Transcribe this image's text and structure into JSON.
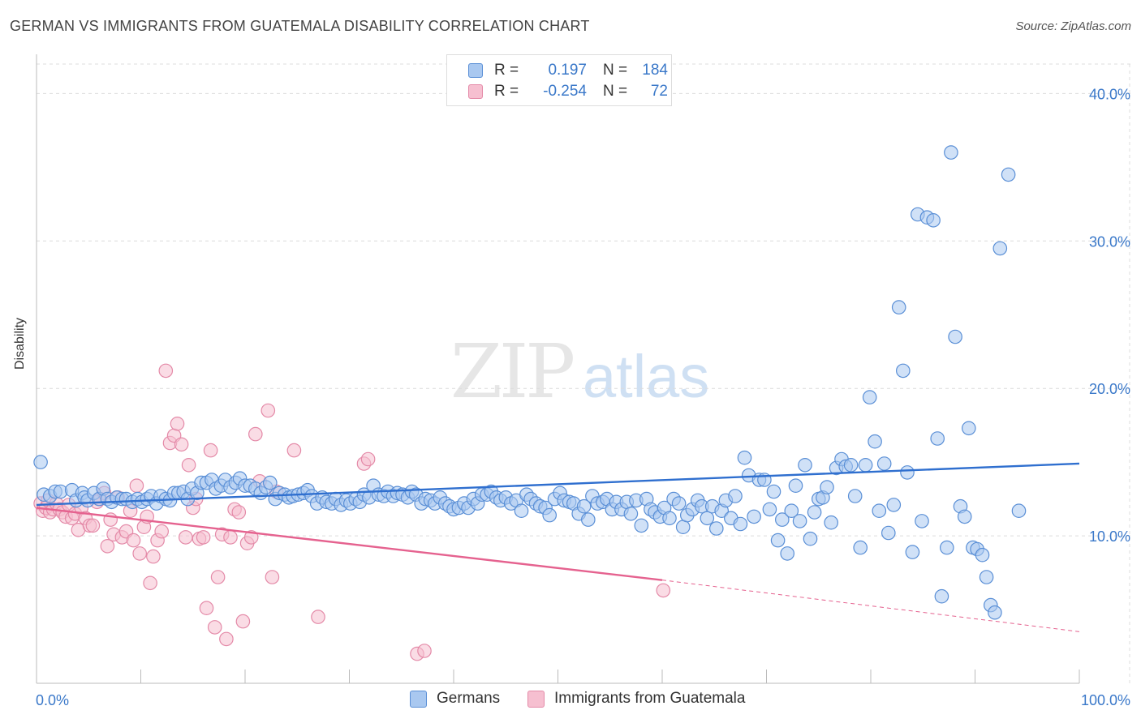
{
  "title": "GERMAN VS IMMIGRANTS FROM GUATEMALA DISABILITY CORRELATION CHART",
  "source": "Source: ZipAtlas.com",
  "watermark": {
    "zip": "ZIP",
    "atlas": "atlas"
  },
  "legend": {
    "rows": [
      {
        "r_label": "R =",
        "r_value": "0.197",
        "n_label": "N =",
        "n_value": "184"
      },
      {
        "r_label": "R =",
        "r_value": "-0.254",
        "n_label": "N =",
        "n_value": "72"
      }
    ]
  },
  "colors": {
    "blue_fill": "#a9c8f0",
    "blue_stroke": "#5a8fd6",
    "blue_line": "#2f6fcf",
    "pink_fill": "#f6bfd0",
    "pink_stroke": "#e48aa8",
    "pink_line": "#e5628f",
    "grid": "#dcdcdc",
    "tick_text": "#3a78c9"
  },
  "chart_data": {
    "type": "scatter",
    "title": "GERMAN VS IMMIGRANTS FROM GUATEMALA DISABILITY CORRELATION CHART",
    "xlabel": "",
    "ylabel": "Disability",
    "xlim": [
      0,
      100
    ],
    "ylim": [
      0,
      42
    ],
    "x_tick_labels": [
      "0.0%",
      "100.0%"
    ],
    "y_ticks": [
      10,
      20,
      30,
      40
    ],
    "y_tick_labels": [
      "10.0%",
      "20.0%",
      "30.0%",
      "40.0%"
    ],
    "grid": true,
    "legend_position": "top-center",
    "series": [
      {
        "name": "Germans",
        "r": 0.197,
        "n": 184,
        "trend": {
          "x0": 0,
          "y0": 12.1,
          "x1": 100,
          "y1": 14.9
        },
        "points": [
          [
            0.4,
            15
          ],
          [
            0.7,
            12.8
          ],
          [
            1.3,
            12.7
          ],
          [
            1.8,
            13
          ],
          [
            2.3,
            13
          ],
          [
            3.4,
            13.1
          ],
          [
            3.8,
            12.4
          ],
          [
            4.4,
            12.9
          ],
          [
            4.6,
            12.6
          ],
          [
            4.9,
            12.4
          ],
          [
            5.5,
            12.9
          ],
          [
            6,
            12.5
          ],
          [
            6.4,
            13.2
          ],
          [
            6.8,
            12.5
          ],
          [
            7.2,
            12.3
          ],
          [
            7.7,
            12.6
          ],
          [
            8.2,
            12.5
          ],
          [
            8.6,
            12.5
          ],
          [
            9.2,
            12.3
          ],
          [
            9.7,
            12.5
          ],
          [
            10.1,
            12.3
          ],
          [
            10.6,
            12.5
          ],
          [
            11,
            12.7
          ],
          [
            11.5,
            12.2
          ],
          [
            11.9,
            12.7
          ],
          [
            12.4,
            12.5
          ],
          [
            12.8,
            12.4
          ],
          [
            13.2,
            12.9
          ],
          [
            13.6,
            12.9
          ],
          [
            14.1,
            13
          ],
          [
            14.5,
            12.5
          ],
          [
            14.9,
            13.2
          ],
          [
            15.4,
            12.9
          ],
          [
            15.8,
            13.6
          ],
          [
            16.3,
            13.6
          ],
          [
            16.8,
            13.8
          ],
          [
            17.2,
            13.2
          ],
          [
            17.7,
            13.4
          ],
          [
            18.1,
            13.8
          ],
          [
            18.6,
            13.3
          ],
          [
            19.1,
            13.6
          ],
          [
            19.5,
            13.9
          ],
          [
            20,
            13.4
          ],
          [
            20.5,
            13.4
          ],
          [
            21,
            13.2
          ],
          [
            21.5,
            12.9
          ],
          [
            22,
            13.3
          ],
          [
            22.4,
            13.6
          ],
          [
            22.9,
            12.5
          ],
          [
            23.3,
            12.9
          ],
          [
            23.8,
            12.8
          ],
          [
            24.2,
            12.6
          ],
          [
            24.6,
            12.7
          ],
          [
            25.1,
            12.8
          ],
          [
            25.6,
            12.9
          ],
          [
            26,
            13.1
          ],
          [
            26.4,
            12.7
          ],
          [
            26.9,
            12.2
          ],
          [
            27.4,
            12.6
          ],
          [
            27.8,
            12.3
          ],
          [
            28.3,
            12.2
          ],
          [
            28.7,
            12.5
          ],
          [
            29.2,
            12.1
          ],
          [
            29.7,
            12.4
          ],
          [
            30.1,
            12.2
          ],
          [
            30.6,
            12.5
          ],
          [
            31,
            12.3
          ],
          [
            31.4,
            12.8
          ],
          [
            31.9,
            12.6
          ],
          [
            32.3,
            13.4
          ],
          [
            32.8,
            12.8
          ],
          [
            33.3,
            12.7
          ],
          [
            33.7,
            13
          ],
          [
            34.2,
            12.7
          ],
          [
            34.6,
            12.9
          ],
          [
            35.1,
            12.8
          ],
          [
            35.6,
            12.6
          ],
          [
            36,
            13
          ],
          [
            36.4,
            12.8
          ],
          [
            36.9,
            12.2
          ],
          [
            37.3,
            12.5
          ],
          [
            37.8,
            12.4
          ],
          [
            38.2,
            12.2
          ],
          [
            38.7,
            12.6
          ],
          [
            39.2,
            12.2
          ],
          [
            39.6,
            12
          ],
          [
            40,
            11.8
          ],
          [
            40.5,
            11.9
          ],
          [
            41,
            12.2
          ],
          [
            41.4,
            11.9
          ],
          [
            41.9,
            12.5
          ],
          [
            42.3,
            12.2
          ],
          [
            42.7,
            12.8
          ],
          [
            43.2,
            12.8
          ],
          [
            43.6,
            13
          ],
          [
            44.1,
            12.6
          ],
          [
            44.5,
            12.4
          ],
          [
            45,
            12.6
          ],
          [
            45.5,
            12.2
          ],
          [
            46,
            12.4
          ],
          [
            46.5,
            11.7
          ],
          [
            47,
            12.8
          ],
          [
            47.4,
            12.5
          ],
          [
            47.9,
            12.2
          ],
          [
            48.3,
            12
          ],
          [
            48.8,
            11.9
          ],
          [
            49.2,
            11.4
          ],
          [
            49.7,
            12.5
          ],
          [
            50.2,
            12.9
          ],
          [
            50.6,
            12.4
          ],
          [
            51.1,
            12.3
          ],
          [
            51.5,
            12.2
          ],
          [
            52,
            11.5
          ],
          [
            52.5,
            12
          ],
          [
            52.9,
            11.1
          ],
          [
            53.3,
            12.7
          ],
          [
            53.8,
            12.2
          ],
          [
            54.3,
            12.3
          ],
          [
            54.7,
            12.5
          ],
          [
            55.2,
            11.8
          ],
          [
            55.6,
            12.3
          ],
          [
            56.1,
            11.8
          ],
          [
            56.6,
            12.3
          ],
          [
            57,
            11.5
          ],
          [
            57.5,
            12.4
          ],
          [
            58,
            10.7
          ],
          [
            58.5,
            12.5
          ],
          [
            58.9,
            11.8
          ],
          [
            59.3,
            11.6
          ],
          [
            59.8,
            11.3
          ],
          [
            60.2,
            11.9
          ],
          [
            60.7,
            11.2
          ],
          [
            61.1,
            12.5
          ],
          [
            61.6,
            12.2
          ],
          [
            62,
            10.6
          ],
          [
            62.4,
            11.4
          ],
          [
            62.9,
            11.8
          ],
          [
            63.4,
            12.4
          ],
          [
            63.8,
            12
          ],
          [
            64.3,
            11.2
          ],
          [
            64.8,
            12
          ],
          [
            65.2,
            10.5
          ],
          [
            65.7,
            11.7
          ],
          [
            66.1,
            12.4
          ],
          [
            66.6,
            11.2
          ],
          [
            67,
            12.7
          ],
          [
            67.5,
            10.8
          ],
          [
            67.9,
            15.3
          ],
          [
            68.3,
            14.1
          ],
          [
            68.8,
            11.3
          ],
          [
            69.3,
            13.8
          ],
          [
            69.8,
            13.8
          ],
          [
            70.3,
            11.8
          ],
          [
            70.7,
            13
          ],
          [
            71.1,
            9.7
          ],
          [
            71.5,
            11.1
          ],
          [
            72,
            8.8
          ],
          [
            72.4,
            11.7
          ],
          [
            72.8,
            13.4
          ],
          [
            73.2,
            11
          ],
          [
            73.7,
            14.8
          ],
          [
            74.2,
            9.8
          ],
          [
            74.6,
            11.6
          ],
          [
            75,
            12.5
          ],
          [
            75.4,
            12.6
          ],
          [
            75.8,
            13.3
          ],
          [
            76.2,
            10.9
          ],
          [
            76.7,
            14.6
          ],
          [
            77.2,
            15.2
          ],
          [
            77.6,
            14.7
          ],
          [
            78.1,
            14.8
          ],
          [
            78.5,
            12.7
          ],
          [
            79,
            9.2
          ],
          [
            79.5,
            14.8
          ],
          [
            79.9,
            19.4
          ],
          [
            80.4,
            16.4
          ],
          [
            80.8,
            11.7
          ],
          [
            81.3,
            14.9
          ],
          [
            81.7,
            10.2
          ],
          [
            82.2,
            12.1
          ],
          [
            82.7,
            25.5
          ],
          [
            83.1,
            21.2
          ],
          [
            83.5,
            14.3
          ],
          [
            84,
            8.9
          ],
          [
            84.5,
            31.8
          ],
          [
            84.9,
            11
          ],
          [
            85.4,
            31.6
          ],
          [
            86,
            31.4
          ],
          [
            86.4,
            16.6
          ],
          [
            86.8,
            5.9
          ],
          [
            87.3,
            9.2
          ],
          [
            87.7,
            36
          ],
          [
            88.1,
            23.5
          ],
          [
            88.6,
            12
          ],
          [
            89,
            11.3
          ],
          [
            89.4,
            17.3
          ],
          [
            89.8,
            9.2
          ],
          [
            90.2,
            9.1
          ],
          [
            90.7,
            8.7
          ],
          [
            91.1,
            7.2
          ],
          [
            91.5,
            5.3
          ],
          [
            91.9,
            4.8
          ],
          [
            92.4,
            29.5
          ],
          [
            93.2,
            34.5
          ],
          [
            94.2,
            11.7
          ]
        ]
      },
      {
        "name": "Immigrants from Guatemala",
        "r": -0.254,
        "n": 72,
        "trend": {
          "x0": 0,
          "y0": 11.9,
          "x1": 60,
          "y1": 7.0,
          "dash_x1": 100,
          "dash_y1": 3.5
        },
        "points": [
          [
            0.4,
            12.2
          ],
          [
            0.6,
            11.7
          ],
          [
            0.9,
            11.9
          ],
          [
            1.1,
            12.4
          ],
          [
            1.3,
            11.6
          ],
          [
            1.6,
            11.8
          ],
          [
            1.9,
            12.2
          ],
          [
            2.2,
            11.8
          ],
          [
            2.5,
            11.6
          ],
          [
            2.8,
            11.3
          ],
          [
            3.1,
            12.1
          ],
          [
            3.4,
            11.2
          ],
          [
            3.7,
            11.5
          ],
          [
            4,
            10.4
          ],
          [
            4.3,
            11.9
          ],
          [
            4.7,
            11.2
          ],
          [
            5.1,
            10.7
          ],
          [
            5.4,
            10.7
          ],
          [
            5.8,
            12.3
          ],
          [
            6.1,
            12.5
          ],
          [
            6.5,
            12.9
          ],
          [
            6.8,
            9.3
          ],
          [
            7.1,
            11.1
          ],
          [
            7.4,
            10.1
          ],
          [
            7.8,
            12.6
          ],
          [
            8.2,
            9.9
          ],
          [
            8.6,
            10.3
          ],
          [
            9,
            11.7
          ],
          [
            9.3,
            9.7
          ],
          [
            9.6,
            13.4
          ],
          [
            9.9,
            8.8
          ],
          [
            10.3,
            10.6
          ],
          [
            10.6,
            11.3
          ],
          [
            10.9,
            6.8
          ],
          [
            11.2,
            8.6
          ],
          [
            11.6,
            9.7
          ],
          [
            12,
            10.3
          ],
          [
            12.4,
            21.2
          ],
          [
            12.8,
            16.3
          ],
          [
            13.2,
            16.8
          ],
          [
            13.5,
            17.6
          ],
          [
            13.9,
            16.2
          ],
          [
            14.3,
            9.9
          ],
          [
            14.6,
            14.8
          ],
          [
            15,
            11.9
          ],
          [
            15.3,
            12.5
          ],
          [
            15.6,
            9.8
          ],
          [
            16,
            9.9
          ],
          [
            16.3,
            5.1
          ],
          [
            16.7,
            15.8
          ],
          [
            17.1,
            3.8
          ],
          [
            17.4,
            7.2
          ],
          [
            17.8,
            10.1
          ],
          [
            18.2,
            3
          ],
          [
            18.6,
            9.9
          ],
          [
            19,
            11.8
          ],
          [
            19.4,
            11.6
          ],
          [
            19.8,
            4.2
          ],
          [
            20.2,
            9.5
          ],
          [
            20.6,
            9.9
          ],
          [
            21,
            16.9
          ],
          [
            21.4,
            13.7
          ],
          [
            22.2,
            18.5
          ],
          [
            22.6,
            7.2
          ],
          [
            23,
            13
          ],
          [
            24.7,
            15.8
          ],
          [
            27,
            4.5
          ],
          [
            31.4,
            14.9
          ],
          [
            31.8,
            15.2
          ],
          [
            36.5,
            2
          ],
          [
            37.2,
            2.2
          ],
          [
            60.1,
            6.3
          ]
        ]
      }
    ]
  }
}
